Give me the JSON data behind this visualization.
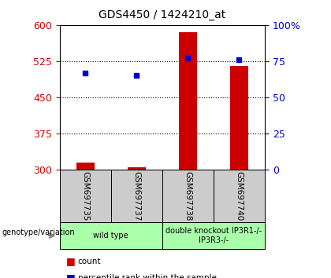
{
  "title": "GDS4450 / 1424210_at",
  "samples": [
    "GSM697735",
    "GSM697737",
    "GSM697738",
    "GSM697740"
  ],
  "counts": [
    315,
    305,
    585,
    515
  ],
  "percentiles": [
    67,
    65,
    77,
    76
  ],
  "ylim_left": [
    300,
    600
  ],
  "ylim_right": [
    0,
    100
  ],
  "yticks_left": [
    300,
    375,
    450,
    525,
    600
  ],
  "yticks_right": [
    0,
    25,
    50,
    75,
    100
  ],
  "ytick_labels_right": [
    "0",
    "25",
    "50",
    "75",
    "100%"
  ],
  "bar_color": "#cc0000",
  "dot_color": "#0000cc",
  "bar_width": 0.35,
  "genotype_label": "genotype/variation",
  "legend_count": "count",
  "legend_percentile": "percentile rank within the sample",
  "bg_plot": "#ffffff",
  "bg_sample_row": "#cccccc",
  "bg_group_row": "#aaffaa",
  "group_labels": [
    "wild type",
    "double knockout IP3R1-/-\nIP3R3-/-"
  ],
  "group_borders": [
    0,
    2,
    4
  ]
}
